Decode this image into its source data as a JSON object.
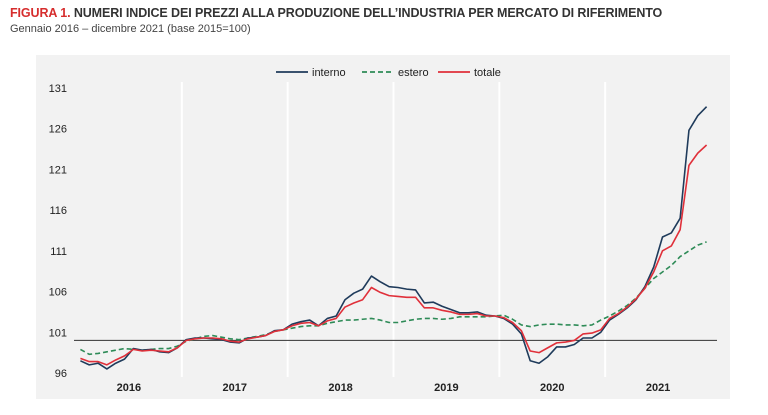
{
  "title": {
    "prefix": "FIGURA 1.",
    "text": "NUMERI INDICE DEI PREZZI ALLA PRODUZIONE DELL’INDUSTRIA PER MERCATO DI RIFERIMENTO"
  },
  "subtitle": "Gennaio 2016 –  dicembre 2021 (base 2015=100)",
  "colors": {
    "title_prefix": "#d62d2d",
    "interno": "#1f3b5b",
    "estero": "#2e8b57",
    "totale": "#e0303a",
    "panel_background": "#f2f2f2"
  },
  "chart_data": {
    "type": "line",
    "title": "NUMERI INDICE DEI PREZZI ALLA PRODUZIONE DELL’INDUSTRIA PER MERCATO DI RIFERIMENTO",
    "subtitle": "Gennaio 2016 –  dicembre 2021 (base 2015=100)",
    "xlabel": "",
    "ylabel": "",
    "ylim": [
      96,
      131
    ],
    "yticks": [
      96,
      101,
      106,
      111,
      116,
      121,
      126,
      131
    ],
    "reference_line": 100,
    "grid": "vertical lines at year boundaries",
    "legend_position": "top-center",
    "years": [
      "2016",
      "2017",
      "2018",
      "2019",
      "2020",
      "2021"
    ],
    "x_unit": "month",
    "x_start": "2016-01",
    "x_end": "2021-12",
    "series": [
      {
        "name": "interno",
        "style": "solid",
        "values": [
          97.5,
          97.0,
          97.2,
          96.5,
          97.2,
          97.7,
          99.0,
          98.8,
          98.9,
          98.6,
          98.5,
          99.1,
          100.1,
          100.3,
          100.3,
          100.2,
          100.1,
          99.8,
          99.7,
          100.3,
          100.4,
          100.6,
          101.2,
          101.3,
          102.0,
          102.3,
          102.5,
          101.8,
          102.7,
          103.0,
          105.0,
          105.8,
          106.3,
          107.9,
          107.2,
          106.6,
          106.5,
          106.3,
          106.2,
          104.6,
          104.7,
          104.2,
          103.8,
          103.4,
          103.4,
          103.5,
          103.1,
          103.0,
          102.7,
          102.0,
          100.8,
          97.5,
          97.2,
          98.0,
          99.2,
          99.2,
          99.5,
          100.3,
          100.3,
          101.0,
          102.5,
          103.2,
          104.0,
          105.0,
          106.6,
          109.0,
          112.7,
          113.2,
          115.0,
          125.8,
          127.6,
          128.7
        ]
      },
      {
        "name": "estero",
        "style": "dashed",
        "values": [
          98.9,
          98.3,
          98.4,
          98.6,
          98.8,
          99.0,
          98.9,
          98.8,
          98.9,
          99.0,
          99.0,
          99.3,
          99.9,
          100.2,
          100.5,
          100.6,
          100.4,
          100.2,
          100.1,
          100.3,
          100.5,
          100.7,
          101.1,
          101.3,
          101.5,
          101.7,
          101.8,
          101.8,
          102.1,
          102.3,
          102.5,
          102.5,
          102.6,
          102.7,
          102.5,
          102.2,
          102.2,
          102.4,
          102.6,
          102.7,
          102.7,
          102.6,
          102.7,
          102.9,
          102.9,
          102.9,
          102.9,
          103.0,
          103.1,
          102.6,
          101.9,
          101.7,
          101.9,
          102.0,
          102.0,
          101.9,
          101.9,
          101.8,
          101.9,
          102.5,
          103.0,
          103.6,
          104.3,
          105.2,
          106.4,
          107.6,
          108.4,
          109.2,
          110.3,
          111.0,
          111.7,
          112.1
        ]
      },
      {
        "name": "totale",
        "style": "solid",
        "values": [
          97.8,
          97.4,
          97.4,
          97.0,
          97.6,
          98.1,
          98.9,
          98.7,
          98.8,
          98.7,
          98.6,
          99.1,
          100.0,
          100.2,
          100.3,
          100.3,
          100.2,
          99.9,
          99.8,
          100.2,
          100.4,
          100.6,
          101.1,
          101.3,
          101.8,
          102.1,
          102.2,
          101.8,
          102.4,
          102.7,
          104.1,
          104.6,
          105.0,
          106.5,
          105.9,
          105.5,
          105.4,
          105.3,
          105.3,
          104.0,
          104.0,
          103.7,
          103.5,
          103.2,
          103.2,
          103.3,
          103.0,
          103.0,
          102.8,
          102.2,
          101.2,
          98.7,
          98.5,
          99.1,
          99.7,
          99.8,
          100.0,
          100.8,
          100.9,
          101.3,
          102.7,
          103.3,
          104.1,
          105.1,
          106.4,
          108.4,
          111.0,
          111.6,
          113.6,
          121.5,
          123.0,
          124.0
        ]
      }
    ]
  }
}
